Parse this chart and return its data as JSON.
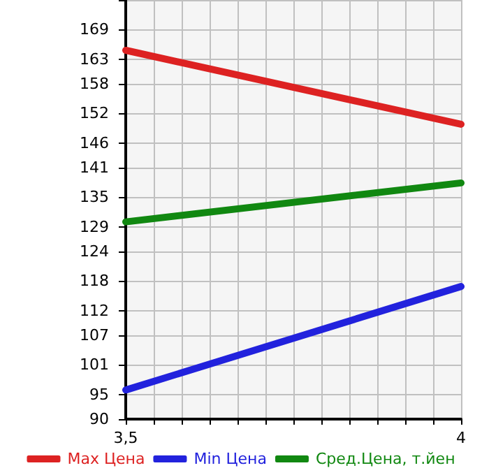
{
  "chart_data": {
    "type": "line",
    "x": [
      3.5,
      4
    ],
    "series": [
      {
        "name": "Max Цена",
        "color": "#dd2222",
        "values": [
          164.8,
          149.8
        ]
      },
      {
        "name": "Min Цена",
        "color": "#2222dd",
        "values": [
          95.9,
          116.9
        ]
      },
      {
        "name": "Сред.Цена, т.йен",
        "color": "#118811",
        "values": [
          130.0,
          137.9
        ]
      }
    ],
    "xlim": [
      3.5,
      4
    ],
    "xticks": [
      {
        "value": 3.5,
        "label": "3,5"
      },
      {
        "value": 3.5417,
        "label": null
      },
      {
        "value": 3.5833,
        "label": null
      },
      {
        "value": 3.625,
        "label": null
      },
      {
        "value": 3.6667,
        "label": null
      },
      {
        "value": 3.7083,
        "label": null
      },
      {
        "value": 3.75,
        "label": null
      },
      {
        "value": 3.7917,
        "label": null
      },
      {
        "value": 3.8333,
        "label": null
      },
      {
        "value": 3.875,
        "label": null
      },
      {
        "value": 3.9167,
        "label": null
      },
      {
        "value": 3.9583,
        "label": null
      },
      {
        "value": 4,
        "label": "4"
      }
    ],
    "ylim": [
      90,
      175
    ],
    "yticks": [
      90,
      95,
      101,
      107,
      112,
      118,
      124,
      129,
      135,
      141,
      146,
      152,
      158,
      163,
      169,
      {
        "value": 175,
        "label": null
      }
    ],
    "grid": true,
    "legend": "bottom",
    "marker": "none",
    "line_style": "solid"
  }
}
